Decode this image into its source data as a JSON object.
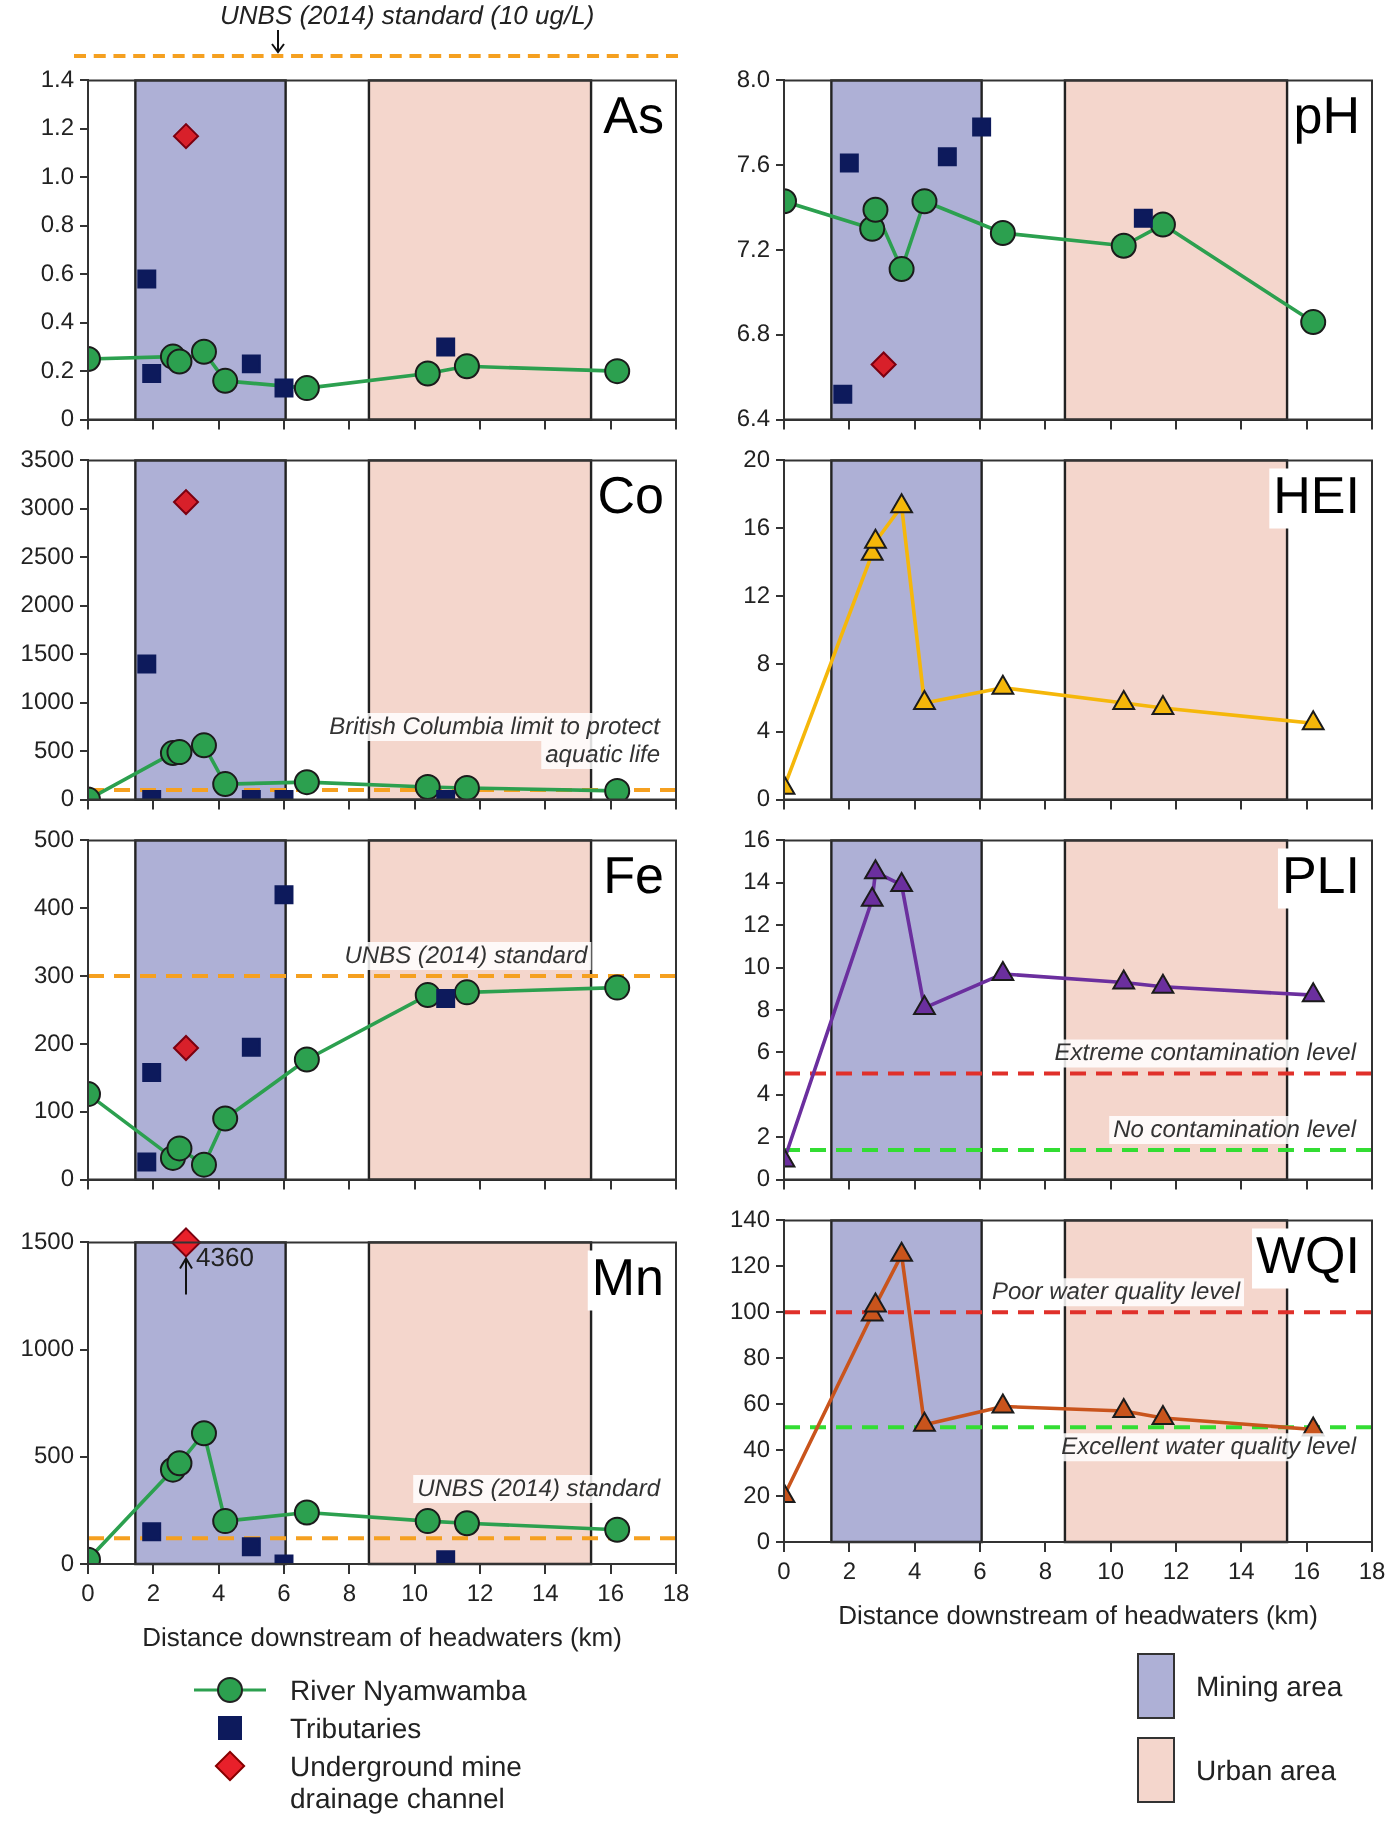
{
  "chart_data": [
    {
      "type": "line",
      "title": "As",
      "annotations": [
        "UNBS (2014) standard (10 ug/L)"
      ],
      "xlim": [
        0,
        18
      ],
      "xticks": [
        0,
        2,
        4,
        6,
        8,
        10,
        12,
        14,
        16,
        18
      ],
      "ylim": [
        0,
        1.4
      ],
      "yticks": [
        0,
        0.2,
        0.4,
        0.6,
        0.8,
        {
          "value": 1,
          "label": "1.0"
        },
        1.2,
        1.4
      ],
      "tick_labels": "y",
      "grid": false,
      "bands": [
        {
          "axis": "x",
          "from": 1.45,
          "to": 6.05,
          "color": "#aeb0d6"
        },
        {
          "axis": "x",
          "from": 8.6,
          "to": 15.4,
          "color": "#f4d6cc"
        }
      ],
      "series": [
        {
          "type": "line",
          "marker": "circle",
          "color": "#2ca04f",
          "x": [
            0,
            2.6,
            2.8,
            3.55,
            4.2,
            6.7,
            10.4,
            11.6,
            16.2
          ],
          "values": [
            0.25,
            0.26,
            0.24,
            0.28,
            0.16,
            0.13,
            0.19,
            0.22,
            0.2
          ]
        },
        {
          "type": "scatter",
          "marker": "square",
          "color": "#0d1a5c",
          "x": [
            1.8,
            1.95,
            5.0,
            6.0,
            10.95
          ],
          "values": [
            0.58,
            0.19,
            0.23,
            0.13,
            0.3
          ]
        },
        {
          "type": "scatter",
          "marker": "diamond",
          "color": "#d8202a",
          "x": [
            3.0
          ],
          "values": [
            1.17
          ]
        }
      ]
    },
    {
      "type": "line",
      "title": "pH",
      "xlim": [
        0,
        18
      ],
      "xticks": [
        0,
        2,
        4,
        6,
        8,
        10,
        12,
        14,
        16,
        18
      ],
      "ylim": [
        6.4,
        8
      ],
      "yticks": [
        6.4,
        6.8,
        7.2,
        7.6,
        {
          "value": 8,
          "label": "8.0"
        }
      ],
      "tick_labels": "y",
      "grid": false,
      "bands": [
        {
          "axis": "x",
          "from": 1.45,
          "to": 6.05,
          "color": "#aeb0d6"
        },
        {
          "axis": "x",
          "from": 8.6,
          "to": 15.4,
          "color": "#f4d6cc"
        }
      ],
      "series": [
        {
          "type": "line",
          "marker": "circle",
          "color": "#2ca04f",
          "x": [
            0,
            2.7,
            2.8,
            3.6,
            4.3,
            6.7,
            10.4,
            11.6,
            16.2
          ],
          "values": [
            7.43,
            7.3,
            7.39,
            7.11,
            7.43,
            7.28,
            7.22,
            7.32,
            6.86
          ]
        },
        {
          "type": "scatter",
          "marker": "square",
          "color": "#0d1a5c",
          "x": [
            1.8,
            2.0,
            5.0,
            6.05,
            11.0
          ],
          "values": [
            6.52,
            7.61,
            7.64,
            7.78,
            7.35
          ]
        },
        {
          "type": "scatter",
          "marker": "diamond",
          "color": "#d8202a",
          "x": [
            3.05
          ],
          "values": [
            6.66
          ]
        }
      ]
    },
    {
      "type": "line",
      "title": "Co",
      "xlim": [
        0,
        18
      ],
      "xticks": [
        0,
        2,
        4,
        6,
        8,
        10,
        12,
        14,
        16,
        18
      ],
      "ylim": [
        0,
        3500
      ],
      "yticks": [
        0,
        500,
        1000,
        1500,
        2000,
        2500,
        3000,
        3500
      ],
      "tick_labels": "y",
      "grid": false,
      "bands": [
        {
          "axis": "x",
          "from": 1.45,
          "to": 6.05,
          "color": "#aeb0d6"
        },
        {
          "axis": "x",
          "from": 8.6,
          "to": 15.4,
          "color": "#f4d6cc"
        }
      ],
      "ref_lines": [
        {
          "axis": "y",
          "value": 100,
          "label": "British Columbia limit to protect aquatic life",
          "color": "#f5a020",
          "line_style": "dashed"
        }
      ],
      "series": [
        {
          "type": "line",
          "marker": "circle",
          "color": "#2ca04f",
          "x": [
            0,
            2.6,
            2.8,
            3.55,
            4.2,
            6.7,
            10.4,
            11.6,
            16.2
          ],
          "values": [
            0,
            480,
            490,
            560,
            160,
            180,
            130,
            120,
            90
          ]
        },
        {
          "type": "scatter",
          "marker": "square",
          "color": "#0d1a5c",
          "x": [
            1.8,
            1.95,
            5.0,
            6.0,
            10.95
          ],
          "values": [
            1400,
            0,
            0,
            0,
            0
          ]
        },
        {
          "type": "scatter",
          "marker": "diamond",
          "color": "#d8202a",
          "x": [
            3.0
          ],
          "values": [
            3070
          ]
        }
      ]
    },
    {
      "type": "line",
      "title": "HEI",
      "xlim": [
        0,
        18
      ],
      "xticks": [
        0,
        2,
        4,
        6,
        8,
        10,
        12,
        14,
        16,
        18
      ],
      "ylim": [
        0,
        20
      ],
      "yticks": [
        0,
        4,
        8,
        12,
        16,
        20
      ],
      "tick_labels": "y",
      "grid": false,
      "bands": [
        {
          "axis": "x",
          "from": 1.45,
          "to": 6.05,
          "color": "#aeb0d6"
        },
        {
          "axis": "x",
          "from": 8.6,
          "to": 15.4,
          "color": "#f4d6cc"
        }
      ],
      "series": [
        {
          "type": "line",
          "marker": "triangle",
          "color": "#f5b70a",
          "x": [
            0,
            2.7,
            2.8,
            3.6,
            4.3,
            6.7,
            10.4,
            11.6,
            16.2
          ],
          "values": [
            0.7,
            14.5,
            15.2,
            17.3,
            5.7,
            6.6,
            5.7,
            5.4,
            4.5
          ]
        }
      ]
    },
    {
      "type": "line",
      "title": "Fe",
      "xlim": [
        0,
        18
      ],
      "xticks": [
        0,
        2,
        4,
        6,
        8,
        10,
        12,
        14,
        16,
        18
      ],
      "ylim": [
        0,
        500
      ],
      "yticks": [
        0,
        100,
        200,
        300,
        400,
        500
      ],
      "tick_labels": "y",
      "grid": false,
      "bands": [
        {
          "axis": "x",
          "from": 1.45,
          "to": 6.05,
          "color": "#aeb0d6"
        },
        {
          "axis": "x",
          "from": 8.6,
          "to": 15.4,
          "color": "#f4d6cc"
        }
      ],
      "ref_lines": [
        {
          "axis": "y",
          "value": 300,
          "label": "UNBS (2014) standard",
          "color": "#f5a020",
          "line_style": "dashed"
        }
      ],
      "series": [
        {
          "type": "line",
          "marker": "circle",
          "color": "#2ca04f",
          "x": [
            0,
            2.6,
            2.8,
            3.55,
            4.2,
            6.7,
            10.4,
            11.6,
            16.2
          ],
          "values": [
            126,
            32,
            46,
            22,
            90,
            177,
            272,
            276,
            283
          ]
        },
        {
          "type": "scatter",
          "marker": "square",
          "color": "#0d1a5c",
          "x": [
            1.8,
            1.95,
            5.0,
            6.0,
            10.95
          ],
          "values": [
            26,
            158,
            195,
            420,
            267
          ]
        },
        {
          "type": "scatter",
          "marker": "diamond",
          "color": "#d8202a",
          "x": [
            3.0
          ],
          "values": [
            194
          ]
        }
      ]
    },
    {
      "type": "line",
      "title": "PLI",
      "xlim": [
        0,
        18
      ],
      "xticks": [
        0,
        2,
        4,
        6,
        8,
        10,
        12,
        14,
        16,
        18
      ],
      "ylim": [
        0,
        16
      ],
      "yticks": [
        0,
        2,
        4,
        6,
        8,
        10,
        12,
        14,
        16
      ],
      "tick_labels": "y",
      "grid": false,
      "bands": [
        {
          "axis": "x",
          "from": 1.45,
          "to": 6.05,
          "color": "#aeb0d6"
        },
        {
          "axis": "x",
          "from": 8.6,
          "to": 15.4,
          "color": "#f4d6cc"
        }
      ],
      "ref_lines": [
        {
          "axis": "y",
          "value": 5,
          "label": "Extreme contamination level",
          "color": "#e0302a",
          "line_style": "dashed"
        },
        {
          "axis": "y",
          "value": 1.4,
          "label": "No contamination level",
          "color": "#33dd33",
          "line_style": "dashed"
        }
      ],
      "series": [
        {
          "type": "line",
          "marker": "triangle",
          "color": "#6b2f9e",
          "x": [
            0,
            2.7,
            2.8,
            3.6,
            4.3,
            6.7,
            10.4,
            11.6,
            16.2
          ],
          "values": [
            0.9,
            13.2,
            14.5,
            13.9,
            8.1,
            9.7,
            9.3,
            9.1,
            8.7
          ]
        }
      ]
    },
    {
      "type": "line",
      "title": "Mn",
      "xlabel": "Distance downstream of headwaters (km)",
      "legend": "bottom",
      "annotations": [
        {
          "text": "4360",
          "x": 3.0,
          "y": 1500
        }
      ],
      "xlim": [
        0,
        18
      ],
      "xticks": [
        0,
        2,
        4,
        6,
        8,
        10,
        12,
        14,
        16,
        18
      ],
      "ylim": [
        0,
        1500
      ],
      "yticks": [
        0,
        500,
        1000,
        1500
      ],
      "grid": false,
      "bands": [
        {
          "axis": "x",
          "from": 1.45,
          "to": 6.05,
          "color": "#aeb0d6"
        },
        {
          "axis": "x",
          "from": 8.6,
          "to": 15.4,
          "color": "#f4d6cc"
        }
      ],
      "ref_lines": [
        {
          "axis": "y",
          "value": 120,
          "label": "UNBS (2014) standard",
          "color": "#f5a020",
          "line_style": "dashed"
        }
      ],
      "series": [
        {
          "name": "River Nyamwamba",
          "type": "line",
          "marker": "circle",
          "color": "#2ca04f",
          "x": [
            0,
            2.6,
            2.8,
            3.55,
            4.2,
            6.7,
            10.4,
            11.6,
            16.2
          ],
          "values": [
            20,
            440,
            470,
            610,
            200,
            240,
            200,
            190,
            160
          ]
        },
        {
          "name": "Tributaries",
          "type": "scatter",
          "marker": "square",
          "color": "#0d1a5c",
          "x": [
            1.95,
            5.0,
            6.0,
            10.95
          ],
          "values": [
            150,
            80,
            0,
            20
          ]
        },
        {
          "name": "Underground mine drainage channel",
          "type": "scatter",
          "marker": "diamond",
          "color": "#e8202a"
        }
      ]
    },
    {
      "type": "line",
      "title": "WQI",
      "xlabel": "Distance downstream of headwaters (km)",
      "legend": "bottom",
      "xlim": [
        0,
        18
      ],
      "xticks": [
        0,
        2,
        4,
        6,
        8,
        10,
        12,
        14,
        16,
        18
      ],
      "ylim": [
        0,
        140
      ],
      "yticks": [
        0,
        20,
        40,
        60,
        80,
        100,
        120,
        140
      ],
      "grid": false,
      "bands": [
        {
          "axis": "x",
          "from": 1.45,
          "to": 6.05,
          "color": "#aeb0d6",
          "label": "Mining area"
        },
        {
          "axis": "x",
          "from": 8.6,
          "to": 15.4,
          "color": "#f4d6cc",
          "label": "Urban area"
        }
      ],
      "ref_lines": [
        {
          "axis": "y",
          "value": 100,
          "label": "Poor water quality level",
          "color": "#e0302a",
          "line_style": "dashed"
        },
        {
          "axis": "y",
          "value": 50,
          "label": "Excellent water quality level",
          "color": "#33dd33",
          "line_style": "dashed"
        }
      ],
      "series": [
        {
          "type": "line",
          "marker": "triangle",
          "color": "#c9541c",
          "x": [
            0,
            2.7,
            2.8,
            3.6,
            4.3,
            6.7,
            10.4,
            11.6,
            16.2
          ],
          "values": [
            20,
            99,
            103,
            125,
            51,
            59,
            57,
            54,
            49
          ]
        }
      ]
    }
  ]
}
